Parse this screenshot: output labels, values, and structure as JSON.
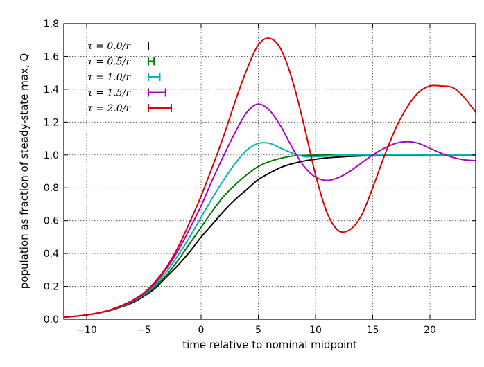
{
  "chart_data": {
    "type": "line",
    "xlabel": "time relative to nominal midpoint",
    "ylabel": "population as fraction of steady-state max, Q",
    "xlim": [
      -12,
      24
    ],
    "ylim": [
      0.0,
      1.8
    ],
    "xticks": [
      -10,
      -5,
      0,
      5,
      10,
      15,
      20
    ],
    "xtick_labels": [
      "−10",
      "−5",
      "0",
      "5",
      "10",
      "15",
      "20"
    ],
    "yticks": [
      0.0,
      0.2,
      0.4,
      0.6,
      0.8,
      1.0,
      1.2,
      1.4,
      1.6,
      1.8
    ],
    "ytick_labels": [
      "0.0",
      "0.2",
      "0.4",
      "0.6",
      "0.8",
      "1.0",
      "1.2",
      "1.4",
      "1.6",
      "1.8"
    ],
    "grid": true,
    "legend_position": "top-left",
    "x": [
      -12,
      -11,
      -10,
      -9,
      -8,
      -7,
      -6,
      -5,
      -4,
      -3,
      -2,
      -1,
      0,
      1,
      2,
      3,
      4,
      5,
      6,
      7,
      8,
      9,
      10,
      11,
      12,
      13,
      14,
      15,
      16,
      17,
      18,
      19,
      20,
      21,
      22,
      23,
      24
    ],
    "series": [
      {
        "name": "τ = 0.0/r",
        "color": "#000000",
        "delay_bar": 0.0,
        "values": [
          0.012,
          0.018,
          0.026,
          0.037,
          0.052,
          0.074,
          0.1,
          0.14,
          0.19,
          0.26,
          0.33,
          0.41,
          0.5,
          0.58,
          0.66,
          0.73,
          0.79,
          0.85,
          0.89,
          0.925,
          0.947,
          0.963,
          0.974,
          0.982,
          0.987,
          0.991,
          0.994,
          0.996,
          0.997,
          0.998,
          0.999,
          0.999,
          1.0,
          1.0,
          1.0,
          1.0,
          1.0
        ]
      },
      {
        "name": "τ = 0.5/r",
        "color": "#007a00",
        "delay_bar": 0.5,
        "values": [
          0.012,
          0.018,
          0.026,
          0.037,
          0.053,
          0.076,
          0.105,
          0.145,
          0.2,
          0.27,
          0.36,
          0.46,
          0.56,
          0.66,
          0.75,
          0.82,
          0.88,
          0.93,
          0.96,
          0.98,
          0.993,
          0.997,
          0.999,
          1.0,
          1.0,
          1.0,
          1.0,
          1.0,
          1.0,
          1.0,
          1.0,
          1.0,
          1.0,
          1.0,
          1.0,
          1.0,
          1.0
        ]
      },
      {
        "name": "τ = 1.0/r",
        "color": "#00b4b4",
        "delay_bar": 1.0,
        "values": [
          0.012,
          0.018,
          0.026,
          0.038,
          0.054,
          0.078,
          0.108,
          0.15,
          0.21,
          0.29,
          0.39,
          0.5,
          0.62,
          0.74,
          0.85,
          0.95,
          1.03,
          1.07,
          1.07,
          1.04,
          1.01,
          0.99,
          0.99,
          0.993,
          1.0,
          1.0,
          1.0,
          1.0,
          1.0,
          1.0,
          1.0,
          1.0,
          1.0,
          1.0,
          1.0,
          1.0,
          1.0
        ]
      },
      {
        "name": "τ = 1.5/r",
        "color": "#aa00cc",
        "delay_bar": 1.5,
        "values": [
          0.012,
          0.018,
          0.026,
          0.038,
          0.055,
          0.08,
          0.11,
          0.155,
          0.22,
          0.31,
          0.42,
          0.55,
          0.69,
          0.85,
          1.0,
          1.14,
          1.26,
          1.31,
          1.27,
          1.17,
          1.04,
          0.93,
          0.865,
          0.845,
          0.862,
          0.9,
          0.95,
          1.0,
          1.04,
          1.07,
          1.08,
          1.07,
          1.04,
          1.01,
          0.985,
          0.97,
          0.965
        ]
      },
      {
        "name": "τ = 2.0/r",
        "color": "#dd0000",
        "delay_bar": 2.0,
        "values": [
          0.012,
          0.018,
          0.026,
          0.038,
          0.056,
          0.082,
          0.115,
          0.16,
          0.23,
          0.32,
          0.44,
          0.59,
          0.75,
          0.93,
          1.12,
          1.33,
          1.52,
          1.67,
          1.71,
          1.64,
          1.45,
          1.18,
          0.88,
          0.65,
          0.54,
          0.545,
          0.63,
          0.8,
          0.99,
          1.16,
          1.29,
          1.38,
          1.42,
          1.42,
          1.41,
          1.35,
          1.26
        ]
      }
    ]
  }
}
